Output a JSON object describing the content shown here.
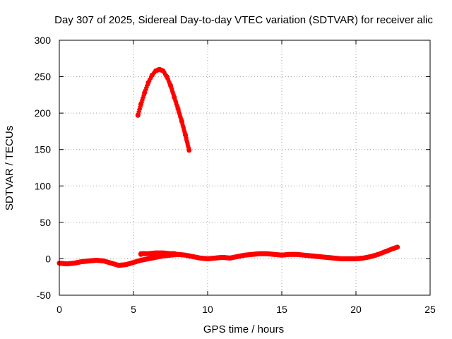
{
  "chart_data": {
    "type": "scatter",
    "title": "Day 307 of 2025, Sidereal Day-to-day VTEC variation (SDTVAR) for receiver alic",
    "xlabel": "GPS time / hours",
    "ylabel": "SDTVAR / TECUs",
    "xlim": [
      0,
      25
    ],
    "ylim": [
      -50,
      300
    ],
    "xticks": [
      0,
      5,
      10,
      15,
      20,
      25
    ],
    "yticks": [
      -50,
      0,
      50,
      100,
      150,
      200,
      250,
      300
    ],
    "grid": true,
    "color": "#ff0000",
    "series": [
      {
        "x": [
          0.0,
          0.5,
          1.0,
          1.5,
          2.0,
          2.5,
          3.0,
          3.5,
          4.0,
          4.5,
          5.0,
          5.5,
          6.0,
          6.5,
          7.0,
          7.5,
          8.0,
          8.5,
          9.0,
          9.5,
          10.0,
          10.5,
          11.0,
          11.5,
          12.0,
          12.5,
          13.0,
          13.5,
          14.0,
          14.5,
          15.0,
          15.5,
          16.0,
          16.5,
          17.0,
          17.5,
          18.0,
          18.5,
          19.0,
          19.5,
          20.0,
          20.5,
          21.0,
          21.5,
          22.0,
          22.5,
          22.8
        ],
        "y": [
          -6,
          -7,
          -6,
          -4,
          -3,
          -2,
          -3,
          -6,
          -9,
          -8,
          -5,
          -2,
          0,
          2,
          4,
          5,
          6,
          5,
          3,
          1,
          0,
          1,
          2,
          1,
          3,
          5,
          6,
          7,
          7,
          6,
          5,
          6,
          6,
          5,
          4,
          3,
          2,
          1,
          0,
          0,
          0,
          1,
          3,
          6,
          10,
          14,
          16
        ]
      },
      {
        "x": [
          5.5,
          5.5,
          6.0,
          6.5,
          7.0,
          7.5,
          7.8
        ],
        "y": [
          6,
          7,
          7,
          8,
          8,
          7,
          7
        ]
      },
      {
        "x": [
          5.3,
          5.5,
          5.75,
          6.0,
          6.25,
          6.5,
          6.75,
          7.0,
          7.25,
          7.5,
          7.75,
          8.0,
          8.25,
          8.5,
          8.75
        ],
        "y": [
          197,
          212,
          228,
          242,
          252,
          258,
          260,
          258,
          250,
          238,
          222,
          206,
          189,
          170,
          149
        ]
      }
    ]
  }
}
